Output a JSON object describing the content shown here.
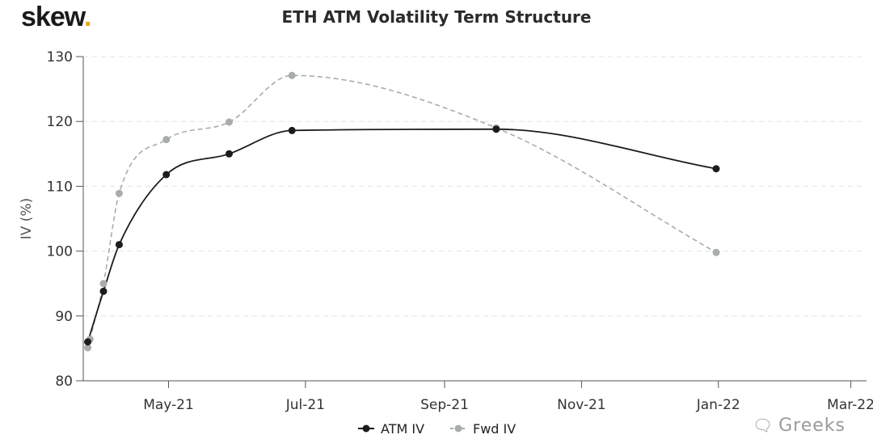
{
  "logo": {
    "text": "skew",
    "dot": "."
  },
  "watermark": {
    "text": "Greeks",
    "icon": "wechat-icon"
  },
  "chart_data": {
    "type": "line",
    "title": "ETH ATM Volatility Term Structure",
    "ylabel": "IV (%)",
    "xlabel": "",
    "ylim": [
      80,
      130
    ],
    "yticks": [
      80,
      90,
      100,
      110,
      120,
      130
    ],
    "xlim": [
      "2021-03-24",
      "2022-03-08"
    ],
    "xticks": [
      {
        "date": "2021-05-01",
        "label": "May-21"
      },
      {
        "date": "2021-07-01",
        "label": "Jul-21"
      },
      {
        "date": "2021-09-01",
        "label": "Sep-21"
      },
      {
        "date": "2021-11-01",
        "label": "Nov-21"
      },
      {
        "date": "2022-01-01",
        "label": "Jan-22"
      },
      {
        "date": "2022-03-01",
        "label": "Mar-22"
      }
    ],
    "grid": "horizontal-dashed",
    "legend": "bottom-center",
    "series": [
      {
        "name": "ATM IV",
        "color": "#1c1c1c",
        "style": "solid",
        "points": [
          {
            "x": "2021-03-26",
            "y": 86.0
          },
          {
            "x": "2021-04-02",
            "y": 93.8
          },
          {
            "x": "2021-04-09",
            "y": 101.0
          },
          {
            "x": "2021-04-30",
            "y": 111.8
          },
          {
            "x": "2021-05-28",
            "y": 115.0
          },
          {
            "x": "2021-06-25",
            "y": 118.6
          },
          {
            "x": "2021-09-24",
            "y": 118.8
          },
          {
            "x": "2021-12-31",
            "y": 112.7
          }
        ]
      },
      {
        "name": "Fwd IV",
        "color": "#a8acae",
        "style": "dashed",
        "points": [
          {
            "x": "2021-03-26",
            "y": 85.1
          },
          {
            "x": "2021-03-27",
            "y": 86.4
          },
          {
            "x": "2021-04-02",
            "y": 95.0
          },
          {
            "x": "2021-04-09",
            "y": 108.9
          },
          {
            "x": "2021-04-30",
            "y": 117.2
          },
          {
            "x": "2021-05-28",
            "y": 119.9
          },
          {
            "x": "2021-06-25",
            "y": 127.1
          },
          {
            "x": "2021-09-24",
            "y": 119.0
          },
          {
            "x": "2021-12-31",
            "y": 99.8
          }
        ]
      }
    ]
  }
}
